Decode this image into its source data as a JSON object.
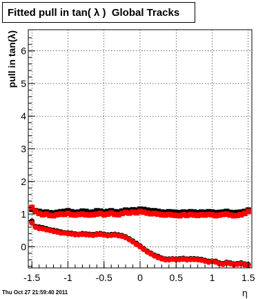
{
  "timestamp": "Thu Oct 27 21:59:40 2011",
  "colors": {
    "series1": "#000000",
    "series2": "#ff0000",
    "frame": "#000000",
    "grid": "#000000"
  },
  "chart_data": {
    "type": "scatter",
    "title": "Fitted pull in tan( λ )  Global Tracks",
    "xlabel": "η",
    "ylabel": "pull in tan(λ)",
    "xlim": [
      -1.55,
      1.55
    ],
    "ylim": [
      -0.65,
      6.65
    ],
    "x_ticks": [
      -1.5,
      -1,
      -0.5,
      0,
      0.5,
      1,
      1.5
    ],
    "x_tick_labels": [
      "-1.5",
      "-1",
      "-0.5",
      "0",
      "0.5",
      "1",
      "1.5"
    ],
    "y_ticks": [
      0,
      1,
      2,
      3,
      4,
      5,
      6
    ],
    "y_tick_labels": [
      "0",
      "1",
      "2",
      "3",
      "4",
      "5",
      "6"
    ],
    "grid": true,
    "series": [
      {
        "marker": "square",
        "color": "#000000",
        "x": [
          -1.5,
          -1.45,
          -1.4,
          -1.35,
          -1.3,
          -1.25,
          -1.2,
          -1.15,
          -1.1,
          -1.05,
          -1.0,
          -0.95,
          -0.9,
          -0.85,
          -0.8,
          -0.75,
          -0.7,
          -0.65,
          -0.6,
          -0.55,
          -0.5,
          -0.45,
          -0.4,
          -0.35,
          -0.3,
          -0.25,
          -0.2,
          -0.15,
          -0.1,
          -0.05,
          0.0,
          0.05,
          0.1,
          0.15,
          0.2,
          0.25,
          0.3,
          0.35,
          0.4,
          0.45,
          0.5,
          0.55,
          0.6,
          0.65,
          0.7,
          0.75,
          0.8,
          0.85,
          0.9,
          0.95,
          1.0,
          1.05,
          1.1,
          1.15,
          1.2,
          1.25,
          1.3,
          1.35,
          1.4,
          1.45,
          1.5
        ],
        "values": [
          1.15,
          1.1,
          1.08,
          1.05,
          1.06,
          1.04,
          1.03,
          1.05,
          1.07,
          1.08,
          1.1,
          1.07,
          1.05,
          1.06,
          1.09,
          1.08,
          1.05,
          1.06,
          1.1,
          1.09,
          1.06,
          1.08,
          1.1,
          1.07,
          1.06,
          1.09,
          1.12,
          1.11,
          1.13,
          1.12,
          1.15,
          1.14,
          1.12,
          1.1,
          1.1,
          1.08,
          1.06,
          1.05,
          1.07,
          1.06,
          1.05,
          1.04,
          1.06,
          1.05,
          1.07,
          1.06,
          1.04,
          1.06,
          1.05,
          1.07,
          1.06,
          1.04,
          1.05,
          1.06,
          1.08,
          1.05,
          1.04,
          1.05,
          1.06,
          1.08,
          1.12
        ]
      },
      {
        "marker": "square",
        "color": "#ff0000",
        "x": [
          -1.5,
          -1.45,
          -1.4,
          -1.35,
          -1.3,
          -1.25,
          -1.2,
          -1.15,
          -1.1,
          -1.05,
          -1.0,
          -0.95,
          -0.9,
          -0.85,
          -0.8,
          -0.75,
          -0.7,
          -0.65,
          -0.6,
          -0.55,
          -0.5,
          -0.45,
          -0.4,
          -0.35,
          -0.3,
          -0.25,
          -0.2,
          -0.15,
          -0.1,
          -0.05,
          0.0,
          0.05,
          0.1,
          0.15,
          0.2,
          0.25,
          0.3,
          0.35,
          0.4,
          0.45,
          0.5,
          0.55,
          0.6,
          0.65,
          0.7,
          0.75,
          0.8,
          0.85,
          0.9,
          0.95,
          1.0,
          1.05,
          1.1,
          1.15,
          1.2,
          1.25,
          1.3,
          1.35,
          1.4,
          1.45,
          1.5
        ],
        "values": [
          1.2,
          1.08,
          1.02,
          0.98,
          1.0,
          0.96,
          0.95,
          0.98,
          1.0,
          0.99,
          1.02,
          0.98,
          0.97,
          0.99,
          1.0,
          0.98,
          0.97,
          0.98,
          1.0,
          1.02,
          0.98,
          1.0,
          1.03,
          0.99,
          0.98,
          1.02,
          1.05,
          1.03,
          1.06,
          1.04,
          1.08,
          1.06,
          1.03,
          1.01,
          1.02,
          1.0,
          0.98,
          0.97,
          0.99,
          0.97,
          0.96,
          0.95,
          0.98,
          0.96,
          0.99,
          0.97,
          0.96,
          0.98,
          0.97,
          0.99,
          0.98,
          0.95,
          0.97,
          0.99,
          1.0,
          0.97,
          0.95,
          0.96,
          0.98,
          1.02,
          1.08
        ]
      },
      {
        "marker": "circle",
        "color": "#000000",
        "x": [
          -1.5,
          -1.45,
          -1.4,
          -1.35,
          -1.3,
          -1.25,
          -1.2,
          -1.15,
          -1.1,
          -1.05,
          -1.0,
          -0.95,
          -0.9,
          -0.85,
          -0.8,
          -0.75,
          -0.7,
          -0.65,
          -0.6,
          -0.55,
          -0.5,
          -0.45,
          -0.4,
          -0.35,
          -0.3,
          -0.25,
          -0.2,
          -0.15,
          -0.1,
          -0.05,
          0.0,
          0.05,
          0.1,
          0.15,
          0.2,
          0.25,
          0.3,
          0.35,
          0.4,
          0.45,
          0.5,
          0.55,
          0.6,
          0.65,
          0.7,
          0.75,
          0.8,
          0.85,
          0.9,
          0.95,
          1.0,
          1.05,
          1.1,
          1.15,
          1.2,
          1.25,
          1.3,
          1.35,
          1.4,
          1.45,
          1.5
        ],
        "values": [
          0.78,
          0.62,
          0.6,
          0.58,
          0.55,
          0.52,
          0.5,
          0.48,
          0.45,
          0.43,
          0.42,
          0.41,
          0.39,
          0.38,
          0.4,
          0.39,
          0.38,
          0.37,
          0.39,
          0.4,
          0.38,
          0.36,
          0.37,
          0.38,
          0.36,
          0.34,
          0.3,
          0.24,
          0.17,
          0.1,
          0.02,
          -0.06,
          -0.14,
          -0.2,
          -0.26,
          -0.3,
          -0.35,
          -0.38,
          -0.38,
          -0.37,
          -0.38,
          -0.37,
          -0.36,
          -0.38,
          -0.37,
          -0.37,
          -0.38,
          -0.39,
          -0.42,
          -0.45,
          -0.44,
          -0.45,
          -0.5,
          -0.52,
          -0.48,
          -0.5,
          -0.53,
          -0.52,
          -0.5,
          -0.53,
          -0.55
        ]
      },
      {
        "marker": "circle",
        "color": "#ff0000",
        "x": [
          -1.5,
          -1.45,
          -1.4,
          -1.35,
          -1.3,
          -1.25,
          -1.2,
          -1.15,
          -1.1,
          -1.05,
          -1.0,
          -0.95,
          -0.9,
          -0.85,
          -0.8,
          -0.75,
          -0.7,
          -0.65,
          -0.6,
          -0.55,
          -0.5,
          -0.45,
          -0.4,
          -0.35,
          -0.3,
          -0.25,
          -0.2,
          -0.15,
          -0.1,
          -0.05,
          0.0,
          0.05,
          0.1,
          0.15,
          0.2,
          0.25,
          0.3,
          0.35,
          0.4,
          0.45,
          0.5,
          0.55,
          0.6,
          0.65,
          0.7,
          0.75,
          0.8,
          0.85,
          0.9,
          0.95,
          1.0,
          1.05,
          1.1,
          1.15,
          1.2,
          1.25,
          1.3,
          1.35,
          1.4,
          1.45,
          1.5
        ],
        "values": [
          0.73,
          0.6,
          0.56,
          0.55,
          0.52,
          0.5,
          0.47,
          0.45,
          0.42,
          0.42,
          0.4,
          0.39,
          0.37,
          0.37,
          0.38,
          0.37,
          0.36,
          0.35,
          0.37,
          0.38,
          0.36,
          0.34,
          0.35,
          0.36,
          0.34,
          0.32,
          0.28,
          0.22,
          0.15,
          0.07,
          0.0,
          -0.08,
          -0.16,
          -0.22,
          -0.28,
          -0.33,
          -0.37,
          -0.4,
          -0.4,
          -0.38,
          -0.4,
          -0.39,
          -0.38,
          -0.4,
          -0.39,
          -0.39,
          -0.4,
          -0.41,
          -0.44,
          -0.47,
          -0.45,
          -0.47,
          -0.52,
          -0.54,
          -0.5,
          -0.52,
          -0.55,
          -0.54,
          -0.52,
          -0.55,
          -0.57
        ]
      }
    ]
  }
}
